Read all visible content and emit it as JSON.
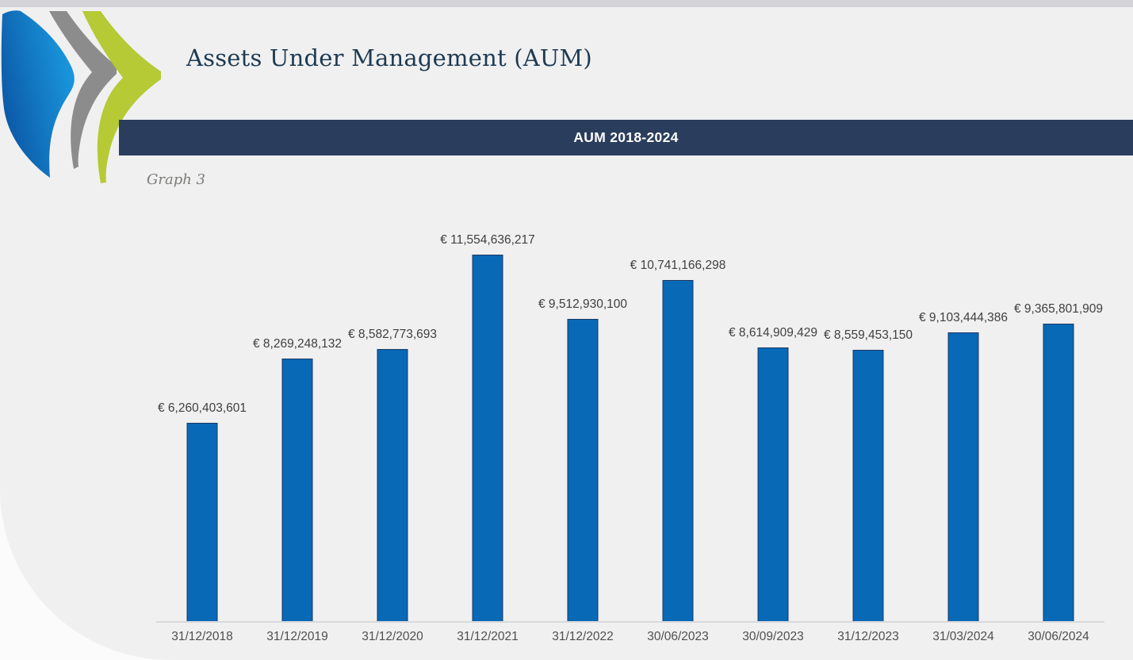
{
  "page": {
    "title": "Assets Under Management (AUM)",
    "banner_label": "AUM 2018-2024",
    "graph_caption": "Graph 3"
  },
  "logo": {
    "name": "triple-chevron-logo",
    "colors": {
      "blue_dark": "#0b55a4",
      "blue_light": "#1b9de2",
      "gray": "#8c8c8c",
      "green": "#b5ca35"
    }
  },
  "colors": {
    "top_strip": "#d4d4d8",
    "page_bg": "#f0f0f1",
    "banner_bg": "#2a3d5c",
    "banner_text": "#ffffff",
    "title_text": "#1e3a52",
    "caption_text": "#7c7c79",
    "bar_fill": "#0869b6",
    "bar_border": "#1f3864",
    "data_label": "#3f3f3f",
    "x_label": "#4f4f4f",
    "axis_line": "#d9d9dc"
  },
  "chart_data": {
    "type": "bar",
    "title": "AUM 2018-2024",
    "xlabel": "",
    "ylabel": "",
    "currency": "EUR",
    "grid": false,
    "legend": false,
    "data_labels_position": "above bars",
    "ylim": [
      0,
      12000000000
    ],
    "categories": [
      "31/12/2018",
      "31/12/2019",
      "31/12/2020",
      "31/12/2021",
      "31/12/2022",
      "30/06/2023",
      "30/09/2023",
      "31/12/2023",
      "31/03/2024",
      "30/06/2024"
    ],
    "values": [
      6260403601,
      8269248132,
      8582773693,
      11554636217,
      9512930100,
      10741166298,
      8614909429,
      8559453150,
      9103444386,
      9365801909
    ],
    "value_labels": [
      "€ 6,260,403,601",
      "€ 8,269,248,132",
      "€ 8,582,773,693",
      "€ 11,554,636,217",
      "€ 9,512,930,100",
      "€ 10,741,166,298",
      "€ 8,614,909,429",
      "€ 8,559,453,150",
      "€ 9,103,444,386",
      "€ 9,365,801,909"
    ]
  }
}
